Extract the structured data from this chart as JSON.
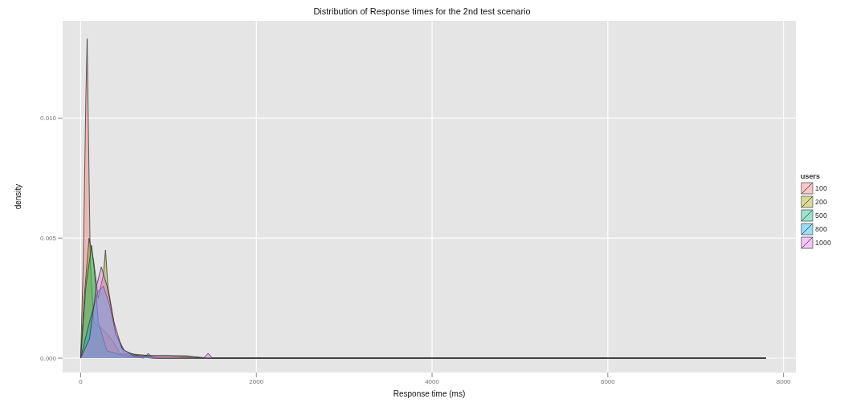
{
  "chart_data": {
    "type": "area",
    "title": "Distribution of Response times for the 2nd test scenario",
    "xlabel": "Response time (ms)",
    "ylabel": "density",
    "legend_title": "users",
    "legend": "right",
    "grid": true,
    "xlim": [
      -205,
      8140
    ],
    "ylim": [
      -0.0006,
      0.01405
    ],
    "xticks": [
      0,
      2000,
      4000,
      6000,
      8000
    ],
    "yticks": [
      {
        "value": 0,
        "label": "0.000"
      },
      {
        "value": 0.005,
        "label": "0.005"
      },
      {
        "value": 0.01,
        "label": "0.010"
      }
    ],
    "series": [
      {
        "name": "100",
        "color": "#F8766D",
        "x": [
          0,
          30,
          60,
          74,
          90,
          110,
          150,
          250,
          350,
          450,
          600,
          800,
          7800
        ],
        "values": [
          0,
          0.004,
          0.011,
          0.0133,
          0.009,
          0.004,
          0.0015,
          0.0012,
          0.0008,
          0.0002,
          0.0001,
          0,
          0
        ]
      },
      {
        "name": "200",
        "color": "#A3A500",
        "x": [
          0,
          40,
          96,
          150,
          200,
          260,
          283,
          310,
          400,
          500,
          800,
          1200,
          1450,
          7800
        ],
        "values": [
          0,
          0.0025,
          0.005,
          0.004,
          0.0025,
          0.0035,
          0.0045,
          0.003,
          0.001,
          0.0002,
          0.0001,
          0.0001,
          0,
          0
        ]
      },
      {
        "name": "500",
        "color": "#00BF7D",
        "x": [
          0,
          60,
          125,
          160,
          200,
          300,
          500,
          720,
          770,
          820,
          7800
        ],
        "values": [
          0,
          0.003,
          0.0047,
          0.0035,
          0.0015,
          0.0003,
          0.0001,
          0,
          0.0002,
          0,
          0
        ]
      },
      {
        "name": "800",
        "color": "#00B0F6",
        "x": [
          0,
          100,
          200,
          260,
          330,
          400,
          500,
          650,
          900,
          7800
        ],
        "values": [
          0,
          0.0015,
          0.0028,
          0.003,
          0.0022,
          0.001,
          0.0003,
          0.0001,
          0,
          0
        ]
      },
      {
        "name": "1000",
        "color": "#E76BF3",
        "x": [
          0,
          100,
          180,
          236,
          300,
          380,
          470,
          600,
          1000,
          1400,
          1450,
          1500,
          7800
        ],
        "values": [
          0,
          0.0008,
          0.003,
          0.0038,
          0.003,
          0.0015,
          0.0004,
          0.0001,
          0.0001,
          0,
          0.0002,
          0,
          0
        ]
      }
    ]
  }
}
